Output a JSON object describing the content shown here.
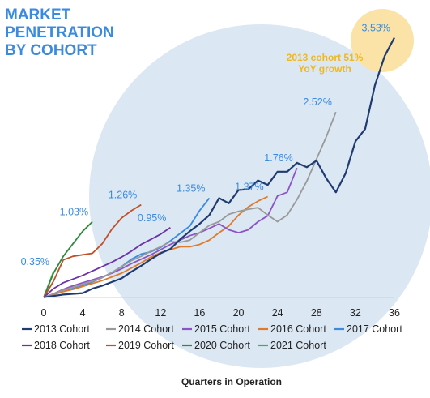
{
  "chart_data": {
    "type": "line",
    "title_lines": [
      "MARKET",
      "PENETRATION",
      "BY COHORT"
    ],
    "xlabel": "Quarters in Operation",
    "ylabel": "",
    "xlim": [
      0,
      36
    ],
    "ylim": [
      0,
      3.8
    ],
    "xticks": [
      0,
      4,
      8,
      12,
      16,
      20,
      24,
      28,
      32,
      36
    ],
    "grid": false,
    "legend_position": "bottom",
    "callout": {
      "lines": [
        "2013 cohort 51%",
        "YoY growth"
      ],
      "color": "#f0b81a"
    },
    "colors": {
      "label_blue": "#3a8be0",
      "bubble": "#dbe7f3",
      "highlight": "#fbe3a8"
    },
    "series": [
      {
        "name": "2013 Cohort",
        "color": "#1f3b70",
        "x": [
          0,
          1,
          2,
          3,
          4,
          5,
          6,
          7,
          8,
          9,
          10,
          11,
          12,
          13,
          14,
          15,
          16,
          17,
          18,
          19,
          20,
          21,
          22,
          23,
          24,
          25,
          26,
          27,
          28,
          29,
          30,
          31,
          32,
          33,
          34,
          35,
          36
        ],
        "y": [
          0,
          0.02,
          0.04,
          0.05,
          0.06,
          0.12,
          0.16,
          0.21,
          0.26,
          0.35,
          0.43,
          0.52,
          0.6,
          0.66,
          0.79,
          0.9,
          1.0,
          1.12,
          1.35,
          1.28,
          1.46,
          1.47,
          1.59,
          1.53,
          1.71,
          1.71,
          1.83,
          1.77,
          1.86,
          1.62,
          1.43,
          1.69,
          2.12,
          2.29,
          2.88,
          3.28,
          3.53
        ]
      },
      {
        "name": "2014 Cohort",
        "color": "#999999",
        "x": [
          0,
          1,
          2,
          3,
          4,
          5,
          6,
          7,
          8,
          9,
          10,
          11,
          12,
          13,
          14,
          15,
          16,
          17,
          18,
          19,
          20,
          21,
          22,
          23,
          24,
          25,
          26,
          27,
          28,
          29,
          30
        ],
        "y": [
          0,
          0.05,
          0.1,
          0.14,
          0.18,
          0.22,
          0.27,
          0.34,
          0.42,
          0.5,
          0.56,
          0.63,
          0.69,
          0.76,
          0.75,
          0.78,
          0.88,
          0.98,
          1.03,
          1.13,
          1.17,
          1.2,
          1.22,
          1.12,
          1.03,
          1.12,
          1.33,
          1.58,
          1.88,
          2.18,
          2.52
        ]
      },
      {
        "name": "2015 Cohort",
        "color": "#8b54c6",
        "x": [
          0,
          1,
          2,
          3,
          4,
          5,
          6,
          7,
          8,
          9,
          10,
          11,
          12,
          13,
          14,
          15,
          16,
          17,
          18,
          19,
          20,
          21,
          22,
          23,
          24,
          25,
          26
        ],
        "y": [
          0,
          0.05,
          0.11,
          0.16,
          0.2,
          0.24,
          0.28,
          0.33,
          0.39,
          0.46,
          0.52,
          0.58,
          0.65,
          0.72,
          0.78,
          0.84,
          0.88,
          0.94,
          1.0,
          0.92,
          0.88,
          0.92,
          1.03,
          1.11,
          1.38,
          1.43,
          1.76
        ]
      },
      {
        "name": "2016 Cohort",
        "color": "#e07a2a",
        "x": [
          0,
          1,
          2,
          3,
          4,
          5,
          6,
          7,
          8,
          9,
          10,
          11,
          12,
          13,
          14,
          15,
          16,
          17,
          18,
          19,
          20,
          21,
          22,
          23
        ],
        "y": [
          0,
          0.04,
          0.08,
          0.11,
          0.15,
          0.19,
          0.23,
          0.28,
          0.33,
          0.4,
          0.47,
          0.55,
          0.61,
          0.65,
          0.69,
          0.69,
          0.72,
          0.78,
          0.88,
          0.97,
          1.12,
          1.23,
          1.31,
          1.37
        ]
      },
      {
        "name": "2017 Cohort",
        "color": "#3a8be0",
        "x": [
          0,
          1,
          2,
          3,
          4,
          5,
          6,
          7,
          8,
          9,
          10,
          11,
          12,
          13,
          14,
          15,
          16,
          17
        ],
        "y": [
          0,
          0.04,
          0.08,
          0.12,
          0.16,
          0.21,
          0.27,
          0.34,
          0.42,
          0.52,
          0.59,
          0.62,
          0.68,
          0.77,
          0.87,
          0.97,
          1.18,
          1.35
        ]
      },
      {
        "name": "2018 Cohort",
        "color": "#6a32a8",
        "x": [
          0,
          1,
          2,
          3,
          4,
          5,
          6,
          7,
          8,
          9,
          10,
          11,
          12,
          13
        ],
        "y": [
          0,
          0.12,
          0.2,
          0.25,
          0.3,
          0.36,
          0.42,
          0.48,
          0.55,
          0.63,
          0.72,
          0.79,
          0.86,
          0.95
        ]
      },
      {
        "name": "2019 Cohort",
        "color": "#c0502a",
        "x": [
          0,
          1,
          2,
          3,
          4,
          5,
          6,
          7,
          8,
          9,
          10
        ],
        "y": [
          0,
          0.22,
          0.51,
          0.56,
          0.58,
          0.6,
          0.73,
          0.93,
          1.08,
          1.18,
          1.26
        ]
      },
      {
        "name": "2020 Cohort",
        "color": "#2e8b3e",
        "x": [
          0,
          1,
          2,
          3,
          4,
          5
        ],
        "y": [
          0,
          0.33,
          0.56,
          0.73,
          0.9,
          1.03
        ]
      },
      {
        "name": "2021 Cohort",
        "color": "#3cb44a",
        "x": [
          0,
          1
        ],
        "y": [
          0,
          0.35
        ]
      }
    ],
    "data_labels": [
      {
        "text": "0.35%",
        "x": 1,
        "y": 0.35,
        "anchor": "end"
      },
      {
        "text": "1.03%",
        "x": 5,
        "y": 1.03,
        "anchor": "end"
      },
      {
        "text": "1.26%",
        "x": 10,
        "y": 1.26,
        "anchor": "end"
      },
      {
        "text": "0.95%",
        "x": 13,
        "y": 0.95,
        "anchor": "end"
      },
      {
        "text": "1.35%",
        "x": 17,
        "y": 1.35,
        "anchor": "end"
      },
      {
        "text": "1.37%",
        "x": 23,
        "y": 1.37,
        "anchor": "end"
      },
      {
        "text": "1.76%",
        "x": 26,
        "y": 1.76,
        "anchor": "end"
      },
      {
        "text": "2.52%",
        "x": 30,
        "y": 2.52,
        "anchor": "end"
      },
      {
        "text": "3.53%",
        "x": 36,
        "y": 3.53,
        "anchor": "end"
      }
    ]
  }
}
